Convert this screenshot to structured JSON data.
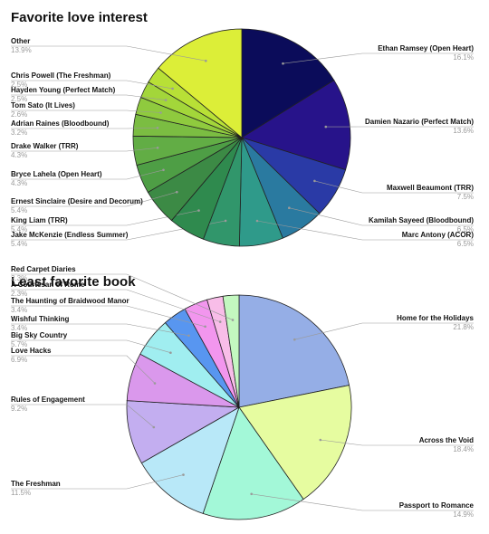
{
  "chart_data": [
    {
      "type": "pie",
      "title": "Favorite love interest",
      "slices": [
        {
          "label": "Ethan Ramsey (Open Heart)",
          "value": 16.1,
          "display": "16.1%",
          "color": "#0b0c5a"
        },
        {
          "label": "Damien Nazario (Perfect Match)",
          "value": 13.6,
          "display": "13.6%",
          "color": "#27138a"
        },
        {
          "label": "Maxwell Beaumont (TRR)",
          "value": 7.5,
          "display": "7.5%",
          "color": "#2a3aa6"
        },
        {
          "label": "Kamilah Sayeed (Bloodbound)",
          "value": 6.5,
          "display": "6.5%",
          "color": "#2a7aa0"
        },
        {
          "label": "Marc Antony (ACOR)",
          "value": 6.5,
          "display": "6.5%",
          "color": "#2f9a8a"
        },
        {
          "label": "Jake McKenzie (Endless Summer)",
          "value": 5.4,
          "display": "5.4%",
          "color": "#31966b"
        },
        {
          "label": "King Liam (TRR)",
          "value": 5.4,
          "display": "5.4%",
          "color": "#2f8a4e"
        },
        {
          "label": "Ernest Sinclaire (Desire and Decorum)",
          "value": 5.4,
          "display": "5.4%",
          "color": "#3c8a45"
        },
        {
          "label": "Bryce Lahela (Open Heart)",
          "value": 4.3,
          "display": "4.3%",
          "color": "#4e9e45"
        },
        {
          "label": "Drake Walker (TRR)",
          "value": 4.3,
          "display": "4.3%",
          "color": "#62ad45"
        },
        {
          "label": "Adrian Raines (Bloodbound)",
          "value": 3.2,
          "display": "3.2%",
          "color": "#7bbd42"
        },
        {
          "label": "Tom Sato (It Lives)",
          "value": 2.6,
          "display": "2.6%",
          "color": "#8fca3e"
        },
        {
          "label": "Hayden Young (Perfect Match)",
          "value": 2.5,
          "display": "2.5%",
          "color": "#a3d63a"
        },
        {
          "label": "Chris Powell (The Freshman)",
          "value": 2.5,
          "display": "2.5%",
          "color": "#b8e036"
        },
        {
          "label": "Other",
          "value": 13.9,
          "display": "13.9%",
          "color": "#dcee38"
        }
      ]
    },
    {
      "type": "pie",
      "title": "Least favorite book",
      "slices": [
        {
          "label": "Home for the Holidays",
          "value": 21.8,
          "display": "21.8%",
          "color": "#95aee6"
        },
        {
          "label": "Across the Void",
          "value": 18.4,
          "display": "18.4%",
          "color": "#e6fca0"
        },
        {
          "label": "Passport to Romance",
          "value": 14.9,
          "display": "14.9%",
          "color": "#a3f8d8"
        },
        {
          "label": "The Freshman",
          "value": 11.5,
          "display": "11.5%",
          "color": "#b8e8f8"
        },
        {
          "label": "Rules of Engagement",
          "value": 9.2,
          "display": "9.2%",
          "color": "#c3aef0"
        },
        {
          "label": "Love Hacks",
          "value": 6.9,
          "display": "6.9%",
          "color": "#da98ec"
        },
        {
          "label": "Big Sky Country",
          "value": 5.7,
          "display": "5.7%",
          "color": "#a0eef0"
        },
        {
          "label": "Wishful Thinking",
          "value": 3.4,
          "display": "3.4%",
          "color": "#5896f0"
        },
        {
          "label": "The Haunting of Braidwood Manor",
          "value": 3.4,
          "display": "3.4%",
          "color": "#f296ee"
        },
        {
          "label": "A Courtesan of Rome",
          "value": 2.3,
          "display": "2.3%",
          "color": "#f8bde8"
        },
        {
          "label": "Red Carpet Diaries",
          "value": 2.3,
          "display": "2.3%",
          "color": "#c3f8c0"
        }
      ]
    }
  ]
}
